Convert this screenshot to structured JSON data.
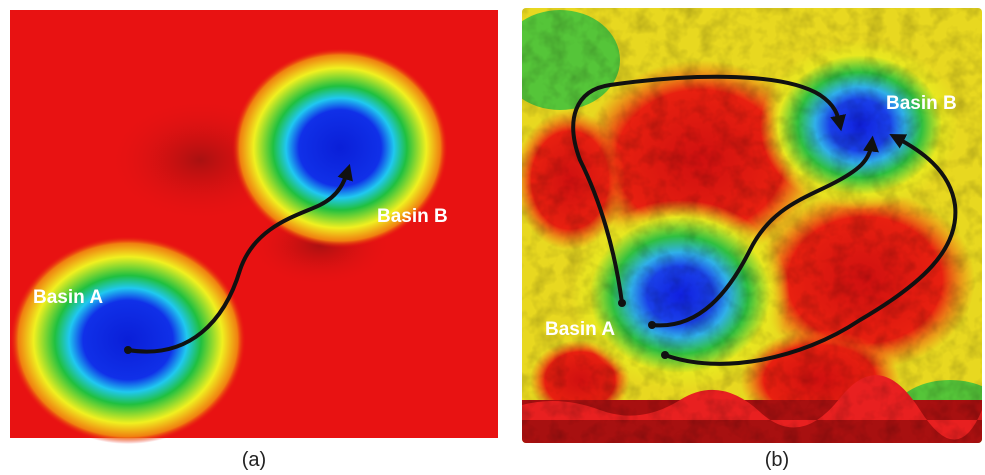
{
  "panels": [
    {
      "label": "(a)",
      "basins": [
        "Basin A",
        "Basin B"
      ]
    },
    {
      "label": "(b)",
      "basins": [
        "Basin A",
        "Basin B"
      ]
    }
  ]
}
